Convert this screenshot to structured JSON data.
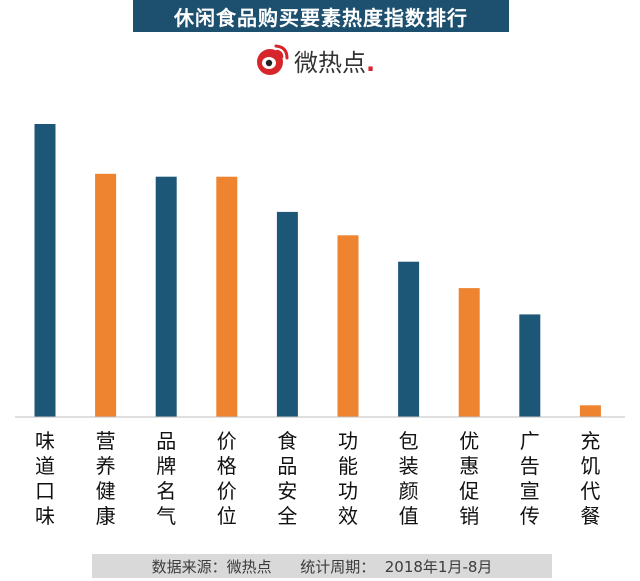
{
  "title": "休闲食品购买要素热度指数排行",
  "logo": {
    "text": "微热点",
    "dot": "."
  },
  "colors": {
    "blue": "#1d5777",
    "orange": "#ee8330",
    "title_bg": "#1d4f6e"
  },
  "chart_data": {
    "type": "bar",
    "categories": [
      "味道口味",
      "营养健康",
      "品牌名气",
      "价格价位",
      "食品安全",
      "功能功效",
      "包装颜值",
      "优惠促销",
      "广告宣传",
      "充饥代餐"
    ],
    "values": [
      100,
      83,
      82,
      82,
      70,
      62,
      53,
      44,
      35,
      4
    ],
    "bar_colors": [
      "#1d5777",
      "#ee8330",
      "#1d5777",
      "#ee8330",
      "#1d5777",
      "#ee8330",
      "#1d5777",
      "#ee8330",
      "#1d5777",
      "#ee8330"
    ],
    "ylim": [
      0,
      100
    ],
    "grid": false
  },
  "footer": {
    "source": "数据来源：微热点",
    "period": "统计周期：  2018年1月-8月"
  }
}
